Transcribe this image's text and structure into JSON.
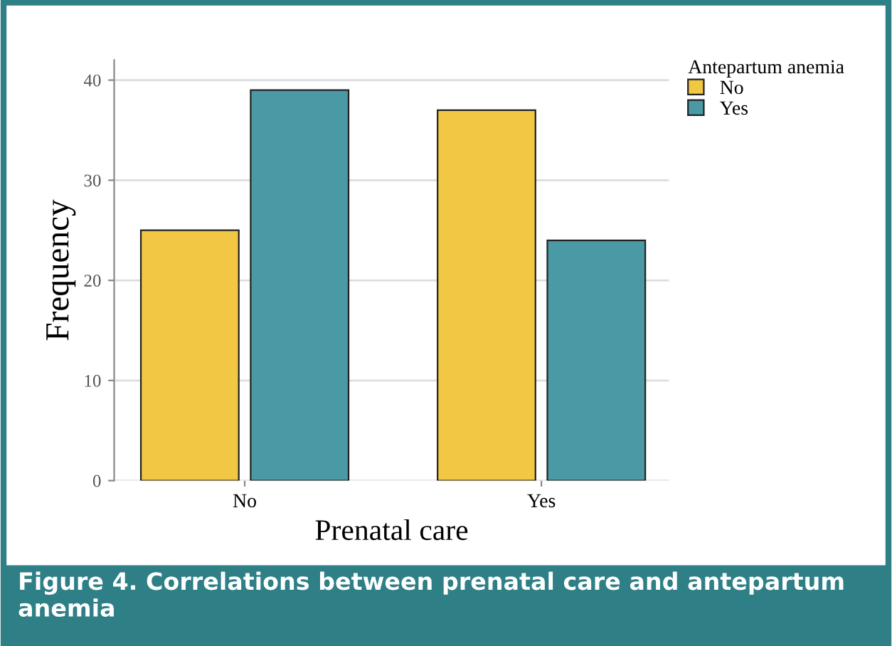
{
  "chart_data": {
    "type": "bar",
    "xlabel": "Prenatal care",
    "ylabel": "Frequency",
    "legend_title": "Antepartum anemia",
    "categories": [
      "No",
      "Yes"
    ],
    "series": [
      {
        "name": "No",
        "color": "#f2c744",
        "values": [
          25,
          37
        ]
      },
      {
        "name": "Yes",
        "color": "#4a9aa6",
        "values": [
          39,
          24
        ]
      }
    ],
    "ylim": [
      0,
      42
    ],
    "yticks": [
      0,
      10,
      20,
      30,
      40
    ],
    "grid": "y",
    "legend": "top right",
    "annotations": [
      "Figure 4. Correlations between prenatal care and antepartum anemia"
    ]
  }
}
